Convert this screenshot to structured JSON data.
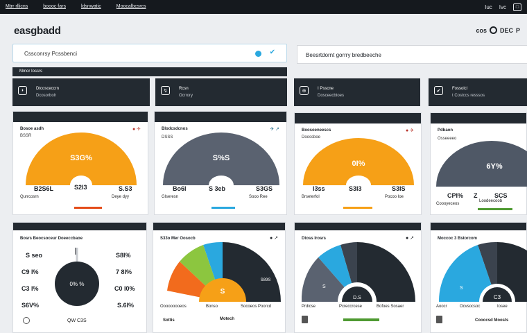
{
  "topbar": {
    "nav": [
      "Mtrr rllicns",
      "boooc fars",
      "ldsnwatic",
      "Moocalbcsrcs"
    ],
    "right": [
      "Iuc",
      "Ivc",
      "□"
    ]
  },
  "app": {
    "title": "easgbadd",
    "right_text": "cos",
    "right_btn": "DEC",
    "right_icon": "P"
  },
  "search": {
    "placeholder": "Cssconrsy Pcssbenci"
  },
  "right_panel": {
    "label": "Beesrtdornt gorrry bredbeeche"
  },
  "section": {
    "label": "Mmor Iossrs"
  },
  "kpis": [
    {
      "icon": "◗",
      "line1": "Dtcosceccrn",
      "line2": "Dcosorbolr"
    },
    {
      "icon": "↯",
      "line1": "Rcsn",
      "line2": "Ocrrory"
    },
    {
      "icon": "⊕",
      "line1": "I  Psscne",
      "line2": "Dosceecbtoes"
    },
    {
      "icon": "✔",
      "line1": "Fossolcl",
      "line2": "t Costccs resssos"
    }
  ],
  "gauges": [
    {
      "title": "Bosoe asdh",
      "sub": "BSSR",
      "icons": "● ✈",
      "center": "S3G%",
      "mid": "S2I3",
      "left_val": "B2S6L",
      "left_lbl": "Qurrcosrn",
      "right_val": "S.S3",
      "right_lbl": "Deye dyy",
      "color": "#f6a017",
      "accent": "#e44d1a",
      "fill": 1.0
    },
    {
      "title": "Blodcsdcnos",
      "sub": "DSSS",
      "icons": "✈ ↗",
      "center": "S%S",
      "mid": "S 3eb",
      "left_val": "Bo6I",
      "left_lbl": "Glseresn",
      "right_val": "S3GS",
      "right_lbl": "Sooo  Ree",
      "color": "#5a6270",
      "accent": "#2aa8df",
      "fill": 1.0
    },
    {
      "title": "Boosoeneescs",
      "sub": "Doossboe",
      "icons": "● ✈",
      "center": "0I%",
      "mid": "S3I3",
      "left_val": "I3ss",
      "left_lbl": "Brseterfol",
      "right_val": "S3IS",
      "right_lbl": "Pocoo Ioe",
      "color": "#f6a017",
      "accent": "#f6a017",
      "fill": 1.0
    },
    {
      "title": "Pdbaon",
      "sub": "Osseeeeo",
      "icons": "",
      "center": "6Y%",
      "mid": "Z",
      "left_val": "CPI%",
      "left_lbl": "Coooyeceos",
      "right_val": "SCS",
      "right_lbl": "Loodeecoob",
      "color": "#4f5866",
      "accent": "#4f9a32",
      "fill": 1.0
    }
  ],
  "bottom": [
    {
      "title": "Bosrs Beocsoceur Doeeccbaoe",
      "rows": [
        [
          "S seo",
          "S8I%"
        ],
        [
          "C9 I%",
          "7 8I%"
        ],
        [
          "C3 I%",
          "C0 I0%"
        ],
        [
          "S6V%",
          "S.6I%"
        ]
      ],
      "center": "0% %",
      "foot": "QW C3S"
    },
    {
      "title": "S33o Mer Oosocb",
      "center": "S",
      "slice_lbl": "S89S",
      "legend1": "Ooooooooeos",
      "legend2": "Bonso",
      "legend3": "Socoeos Poorcd",
      "foot1": "Sottis",
      "foot2": "Motech"
    },
    {
      "title": "Dtoss Irosrs",
      "slice_lbl": "S",
      "center": "D.S",
      "legend1": "Prdicse",
      "legend2": "Pcreccrcese",
      "legend3": "Bofoes Sosaer"
    },
    {
      "title": "Moccoc 3 Bstorcom",
      "slice_lbl": "S",
      "center": "C3",
      "legend1": "Aoocr",
      "legend2": "Ocvsocsoc",
      "legend3": "Iosee",
      "foot": "Cooocsd Moosts"
    }
  ]
}
